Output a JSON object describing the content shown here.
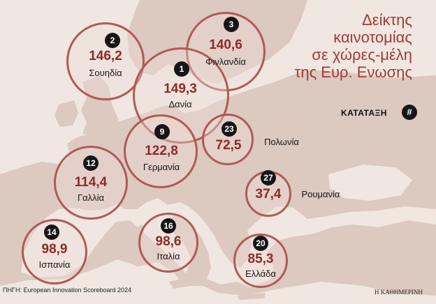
{
  "title_lines": [
    "Δείκτης",
    "καινοτομίας",
    "σε χώρες-μέλη",
    "της Ευρ. Ενωσης"
  ],
  "legend": {
    "label": "ΚΑΤΑΤΑΞΗ",
    "icon": "#"
  },
  "source": "ΠΗΓΗ: European Innovation Scoreboard 2024",
  "brand": "Η ΚΑΘΗΜΕΡΙΝΗ",
  "colors": {
    "accent": "#a23b38",
    "ring": "#b05a58",
    "badge": "#161616",
    "land": "#dcc9c0",
    "sea": "#efe7e0"
  },
  "countries": [
    {
      "id": "sweden",
      "rank": "2",
      "value": "146,2",
      "name": "Σουηδία"
    },
    {
      "id": "finland",
      "rank": "3",
      "value": "140,6",
      "name": "Φινλανδία"
    },
    {
      "id": "denmark",
      "rank": "1",
      "value": "149,3",
      "name": "Δανία"
    },
    {
      "id": "germany",
      "rank": "9",
      "value": "122,8",
      "name": "Γερμανία"
    },
    {
      "id": "poland",
      "rank": "23",
      "value": "72,5",
      "name": "Πολωνία"
    },
    {
      "id": "france",
      "rank": "12",
      "value": "114,4",
      "name": "Γαλλία"
    },
    {
      "id": "romania",
      "rank": "27",
      "value": "37,4",
      "name": "Ρουμανία"
    },
    {
      "id": "spain",
      "rank": "14",
      "value": "98,9",
      "name": "Ισπανία"
    },
    {
      "id": "italy",
      "rank": "16",
      "value": "98,6",
      "name": "Ιταλία"
    },
    {
      "id": "greece",
      "rank": "20",
      "value": "85,3",
      "name": "Ελλάδα"
    }
  ]
}
